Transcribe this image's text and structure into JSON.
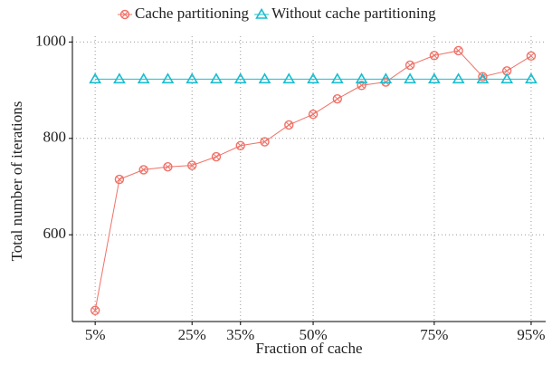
{
  "chart_data": {
    "type": "line",
    "x_label": "Fraction of cache",
    "y_label": "Total number of iterations",
    "x": [
      5,
      10,
      15,
      20,
      25,
      30,
      35,
      40,
      45,
      50,
      55,
      60,
      65,
      70,
      75,
      80,
      85,
      90,
      95
    ],
    "series": [
      {
        "name": "Cache partitioning",
        "color": "#f07167",
        "marker": "circle",
        "values": [
          443,
          715,
          735,
          741,
          744,
          762,
          785,
          793,
          828,
          850,
          882,
          910,
          917,
          952,
          972,
          982,
          928,
          940,
          971
        ]
      },
      {
        "name": "Without cache partitioning",
        "color": "#17becf",
        "marker": "triangle",
        "values": [
          923,
          923,
          923,
          923,
          923,
          923,
          923,
          923,
          923,
          923,
          923,
          923,
          923,
          923,
          923,
          923,
          923,
          923,
          923
        ]
      }
    ],
    "xlim": [
      0.3,
      98
    ],
    "xticks": [
      {
        "value": 5,
        "label": "5%"
      },
      {
        "value": 25,
        "label": "25%"
      },
      {
        "value": 35,
        "label": "35%"
      },
      {
        "value": 50,
        "label": "50%"
      },
      {
        "value": 75,
        "label": "75%"
      },
      {
        "value": 95,
        "label": "95%"
      }
    ],
    "ylim": [
      420,
      1012
    ],
    "yticks": [
      600,
      800,
      1000
    ],
    "grid": true,
    "legend": "top"
  }
}
